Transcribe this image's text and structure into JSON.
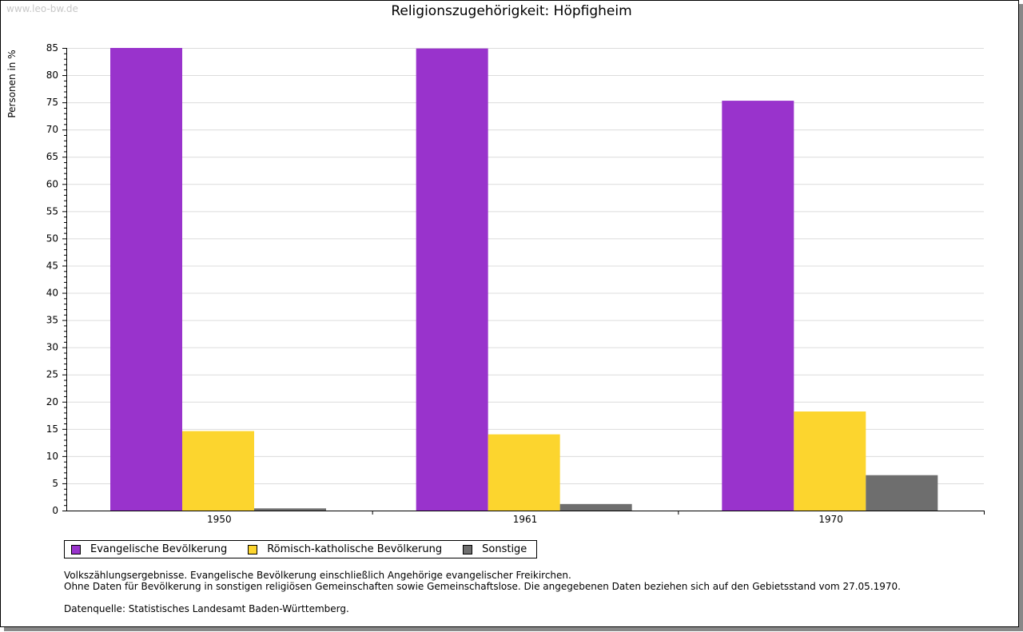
{
  "watermark": "www.leo-bw.de",
  "chart_data": {
    "type": "bar",
    "title": "Religionszugehörigkeit: Höpfigheim",
    "xlabel": "",
    "ylabel": "Personen in %",
    "ylim": [
      0,
      85
    ],
    "yticks": [
      0,
      5,
      10,
      15,
      20,
      25,
      30,
      35,
      40,
      45,
      50,
      55,
      60,
      65,
      70,
      75,
      80,
      85
    ],
    "grid": true,
    "categories": [
      "1950",
      "1961",
      "1970"
    ],
    "series": [
      {
        "name": "Evangelische Bevölkerung",
        "color": "#9933cc",
        "values": [
          85.0,
          84.9,
          75.3
        ]
      },
      {
        "name": "Römisch-katholische Bevölkerung",
        "color": "#fcd52e",
        "values": [
          14.6,
          14.0,
          18.2
        ]
      },
      {
        "name": "Sonstige",
        "color": "#6e6e6e",
        "values": [
          0.4,
          1.2,
          6.5
        ]
      }
    ],
    "legend_position": "bottom-left"
  },
  "notes": [
    "Volkszählungsergebnisse. Evangelische Bevölkerung einschließlich Angehörige evangelischer Freikirchen.",
    "Ohne Daten für Bevölkerung in sonstigen religiösen Gemeinschaften sowie Gemeinschaftslose. Die angegebenen Daten beziehen sich auf den Gebietsstand vom 27.05.1970.",
    "",
    "Datenquelle: Statistisches Landesamt Baden-Württemberg."
  ]
}
